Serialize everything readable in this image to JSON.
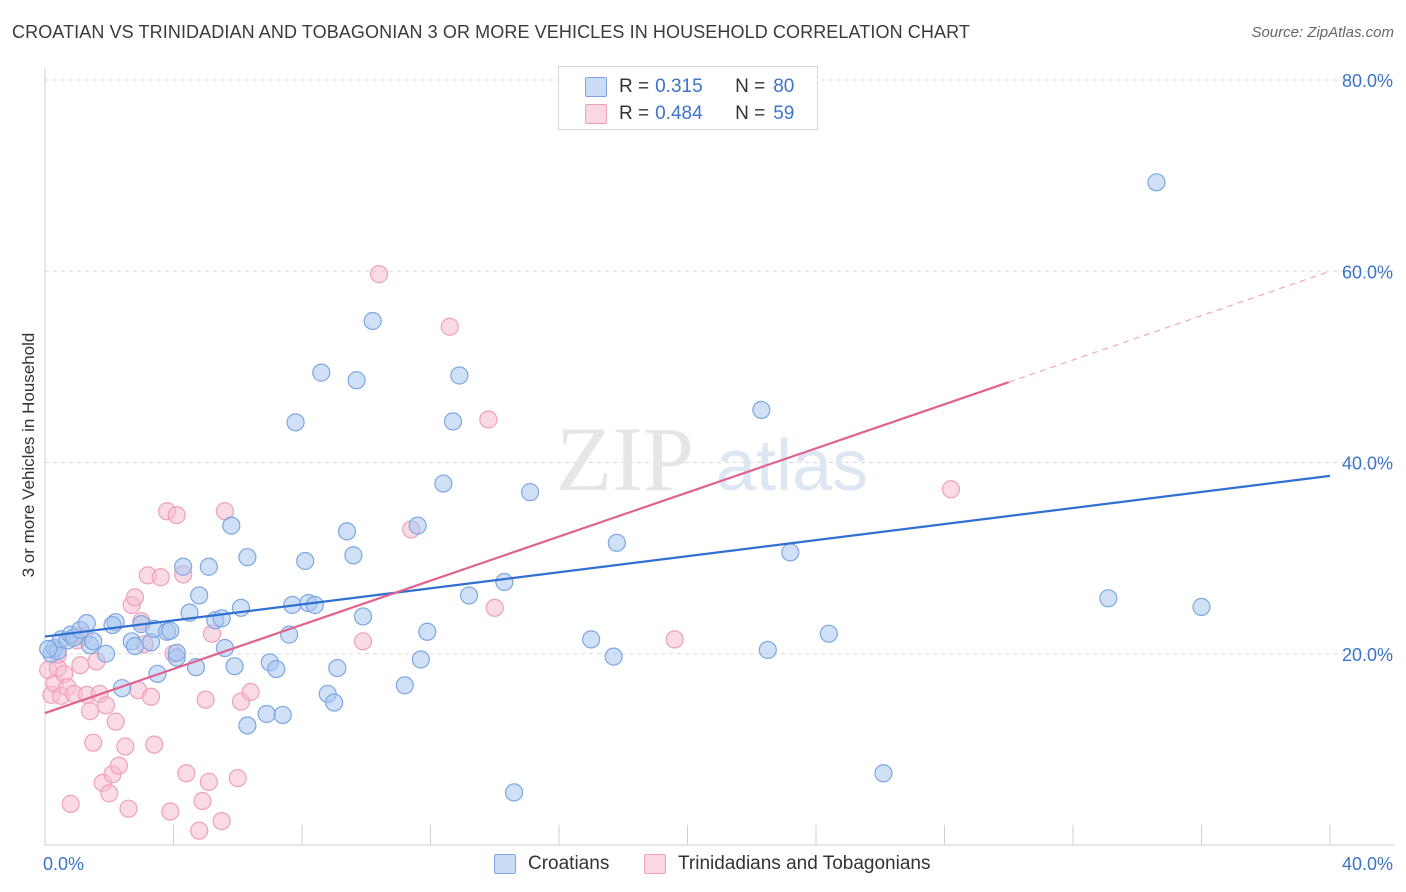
{
  "title": "CROATIAN VS TRINIDADIAN AND TOBAGONIAN 3 OR MORE VEHICLES IN HOUSEHOLD CORRELATION CHART",
  "source": "Source: ZipAtlas.com",
  "watermark": {
    "zip": "ZIP",
    "atlas": "atlas"
  },
  "legend": {
    "rows": [
      {
        "r_label": "R =",
        "r_value": "0.315",
        "n_label": "N =",
        "n_value": "80",
        "color": "#7ea6e0"
      },
      {
        "r_label": "R =",
        "r_value": "0.484",
        "n_label": "N =",
        "n_value": "59",
        "color": "#f0a0b8"
      }
    ]
  },
  "bottom_legend": [
    {
      "label": "Croatians",
      "color": "#7ea6e0"
    },
    {
      "label": "Trinidadians and Tobagonians",
      "color": "#f0a0b8"
    }
  ],
  "colors": {
    "blue_fill": "rgba(168,198,240,0.55)",
    "blue_stroke": "#7ea6e0",
    "blue_line": "#2f6fd0",
    "pink_fill": "rgba(246,190,208,0.55)",
    "pink_stroke": "#f0a0b8",
    "pink_line": "#e0628f",
    "tick_label": "#3b74c8",
    "grid": "#d8d8d8"
  },
  "chart_data": {
    "type": "scatter",
    "title": "CROATIAN VS TRINIDADIAN AND TOBAGONIAN 3 OR MORE VEHICLES IN HOUSEHOLD CORRELATION CHART",
    "xlabel": "",
    "ylabel": "3 or more Vehicles in Household",
    "xlim": [
      0,
      40
    ],
    "ylim": [
      0,
      80
    ],
    "x_tick_labels": [
      "0.0%",
      "40.0%"
    ],
    "y_ticks": [
      20,
      40,
      60,
      80
    ],
    "y_tick_labels": [
      "20.0%",
      "40.0%",
      "60.0%",
      "80.0%"
    ],
    "grid": true,
    "legend_position": "top-center",
    "series": [
      {
        "name": "Croatians",
        "r": 0.315,
        "n": 80,
        "trend": {
          "x0": 0,
          "y0": 21.8,
          "x1": 40,
          "y1": 38.6
        },
        "points": [
          [
            0.2,
            20.0
          ],
          [
            0.3,
            20.6
          ],
          [
            0.4,
            20.3
          ],
          [
            0.5,
            21.5
          ],
          [
            0.7,
            21.4
          ],
          [
            0.8,
            22.0
          ],
          [
            0.9,
            21.7
          ],
          [
            1.1,
            22.5
          ],
          [
            1.3,
            23.2
          ],
          [
            1.4,
            20.9
          ],
          [
            1.5,
            21.3
          ],
          [
            1.9,
            20.0
          ],
          [
            2.2,
            23.3
          ],
          [
            2.4,
            16.4
          ],
          [
            2.7,
            21.3
          ],
          [
            2.8,
            20.8
          ],
          [
            3.0,
            23.1
          ],
          [
            3.3,
            21.2
          ],
          [
            3.4,
            22.6
          ],
          [
            3.5,
            17.9
          ],
          [
            3.8,
            22.3
          ],
          [
            3.9,
            22.4
          ],
          [
            4.1,
            19.6
          ],
          [
            4.1,
            20.1
          ],
          [
            4.3,
            29.1
          ],
          [
            4.5,
            24.3
          ],
          [
            4.7,
            18.6
          ],
          [
            4.8,
            26.1
          ],
          [
            5.1,
            29.1
          ],
          [
            5.3,
            23.5
          ],
          [
            5.5,
            23.7
          ],
          [
            5.6,
            20.6
          ],
          [
            5.8,
            33.4
          ],
          [
            5.9,
            18.7
          ],
          [
            6.1,
            24.8
          ],
          [
            6.3,
            30.1
          ],
          [
            6.3,
            12.5
          ],
          [
            6.9,
            13.7
          ],
          [
            7.0,
            19.1
          ],
          [
            7.2,
            18.4
          ],
          [
            7.4,
            13.6
          ],
          [
            7.6,
            22.0
          ],
          [
            7.7,
            25.1
          ],
          [
            7.8,
            44.2
          ],
          [
            8.1,
            29.7
          ],
          [
            8.2,
            25.3
          ],
          [
            8.4,
            25.1
          ],
          [
            8.6,
            49.4
          ],
          [
            8.8,
            15.8
          ],
          [
            9.0,
            14.9
          ],
          [
            9.1,
            18.5
          ],
          [
            9.4,
            32.8
          ],
          [
            9.6,
            30.3
          ],
          [
            9.7,
            48.6
          ],
          [
            9.9,
            23.9
          ],
          [
            10.2,
            54.8
          ],
          [
            11.2,
            16.7
          ],
          [
            11.6,
            33.4
          ],
          [
            11.7,
            19.4
          ],
          [
            11.9,
            22.3
          ],
          [
            12.4,
            37.8
          ],
          [
            12.7,
            44.3
          ],
          [
            12.9,
            49.1
          ],
          [
            13.2,
            26.1
          ],
          [
            14.3,
            27.5
          ],
          [
            14.6,
            5.5
          ],
          [
            15.1,
            36.9
          ],
          [
            17.0,
            21.5
          ],
          [
            17.7,
            19.7
          ],
          [
            17.8,
            31.6
          ],
          [
            22.3,
            45.5
          ],
          [
            22.5,
            20.4
          ],
          [
            23.2,
            30.6
          ],
          [
            24.4,
            22.1
          ],
          [
            26.1,
            7.5
          ],
          [
            33.1,
            25.8
          ],
          [
            34.6,
            69.3
          ],
          [
            36.0,
            24.9
          ],
          [
            2.1,
            23.0
          ],
          [
            0.1,
            20.5
          ]
        ]
      },
      {
        "name": "Trinidadians and Tobagonians",
        "r": 0.484,
        "n": 59,
        "trend": {
          "x0": 0,
          "y0": 13.8,
          "x1": 30,
          "y1": 48.4,
          "dash_x1": 40,
          "dash_y1": 60.0
        },
        "points": [
          [
            0.1,
            18.3
          ],
          [
            0.2,
            15.7
          ],
          [
            0.3,
            16.9
          ],
          [
            0.4,
            18.5
          ],
          [
            0.5,
            15.6
          ],
          [
            0.6,
            17.9
          ],
          [
            0.7,
            16.5
          ],
          [
            0.8,
            4.3
          ],
          [
            0.9,
            15.8
          ],
          [
            1.0,
            21.4
          ],
          [
            1.1,
            18.8
          ],
          [
            1.2,
            21.9
          ],
          [
            1.3,
            15.7
          ],
          [
            1.4,
            14.0
          ],
          [
            1.5,
            10.7
          ],
          [
            1.6,
            19.2
          ],
          [
            1.7,
            15.8
          ],
          [
            1.8,
            6.5
          ],
          [
            1.9,
            14.6
          ],
          [
            2.0,
            5.4
          ],
          [
            2.1,
            7.4
          ],
          [
            2.2,
            12.9
          ],
          [
            2.3,
            8.3
          ],
          [
            2.5,
            10.3
          ],
          [
            2.6,
            3.8
          ],
          [
            2.7,
            25.1
          ],
          [
            2.8,
            25.9
          ],
          [
            2.9,
            16.2
          ],
          [
            3.0,
            23.4
          ],
          [
            3.1,
            21.0
          ],
          [
            3.2,
            28.2
          ],
          [
            3.3,
            15.5
          ],
          [
            3.4,
            10.5
          ],
          [
            3.6,
            28.0
          ],
          [
            3.8,
            34.9
          ],
          [
            3.9,
            3.5
          ],
          [
            4.0,
            20.0
          ],
          [
            4.1,
            34.5
          ],
          [
            4.3,
            28.3
          ],
          [
            4.4,
            7.5
          ],
          [
            4.8,
            1.5
          ],
          [
            4.9,
            4.6
          ],
          [
            5.0,
            15.2
          ],
          [
            5.1,
            6.6
          ],
          [
            5.2,
            22.1
          ],
          [
            5.5,
            2.5
          ],
          [
            5.6,
            34.9
          ],
          [
            6.0,
            7.0
          ],
          [
            6.1,
            15.0
          ],
          [
            6.4,
            16.0
          ],
          [
            9.9,
            21.3
          ],
          [
            10.4,
            59.7
          ],
          [
            11.4,
            33.0
          ],
          [
            12.6,
            54.2
          ],
          [
            13.8,
            44.5
          ],
          [
            14.0,
            24.8
          ],
          [
            19.6,
            21.5
          ],
          [
            28.2,
            37.2
          ],
          [
            0.4,
            19.9
          ]
        ]
      }
    ]
  }
}
